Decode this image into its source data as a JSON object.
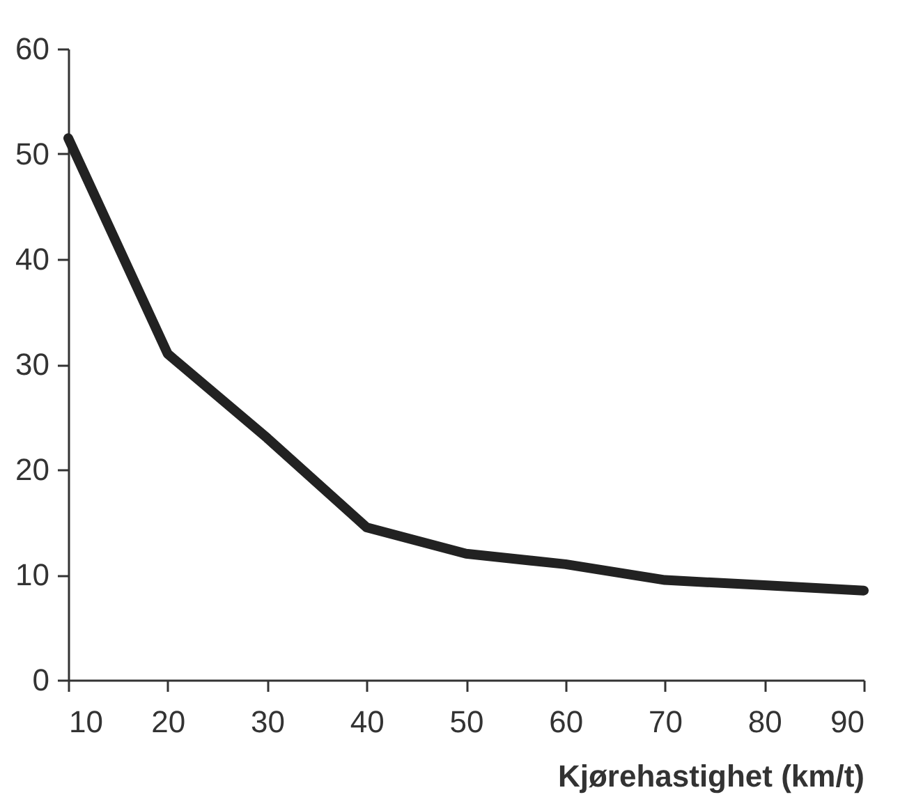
{
  "chart_data": {
    "type": "line",
    "xlabel": "Kjørehastighet (km/t)",
    "x": [
      10,
      20,
      30,
      40,
      50,
      60,
      70,
      80,
      90
    ],
    "series": [
      {
        "color": "#222222",
        "values": [
          51.5,
          31,
          23,
          14.5,
          12,
          11,
          9.5,
          9,
          8.5
        ]
      }
    ],
    "xlim": [
      10,
      90
    ],
    "xticks": [
      10,
      20,
      30,
      40,
      50,
      60,
      70,
      80,
      90
    ],
    "ylim": [
      0,
      60
    ],
    "yticks": [
      0,
      10,
      20,
      30,
      40,
      50,
      60
    ],
    "grid": false,
    "legend": false,
    "marker": "none",
    "line_style": "solid"
  }
}
